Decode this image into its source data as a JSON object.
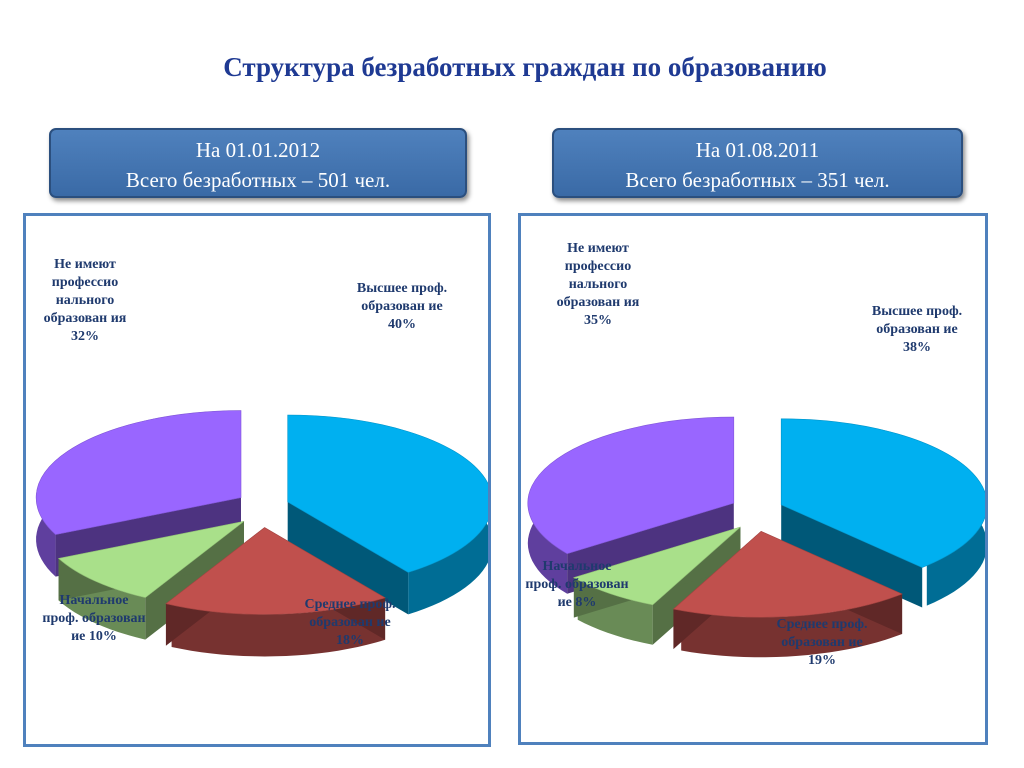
{
  "page_title": "Структура безработных граждан по образованию",
  "colors": {
    "higher": "#00b0f0",
    "secondary": "#c0504d",
    "initial": "#a9e08a",
    "none": "#9966ff",
    "header_bg": "#4f81bd",
    "title": "#1f3a93"
  },
  "chart_data": [
    {
      "type": "pie",
      "header": {
        "date": "На 01.01.2012",
        "total": "Всего безработных – 501 чел."
      },
      "slices": [
        {
          "key": "higher",
          "label": "Высшее проф. образован ие 40%",
          "value": 40
        },
        {
          "key": "secondary",
          "label": "Среднее проф. образован ие 18%",
          "value": 18
        },
        {
          "key": "initial",
          "label": "Начальное проф. образован ие 10%",
          "value": 10
        },
        {
          "key": "none",
          "label": "Не имеют профессио нального образован ия 32%",
          "value": 32
        }
      ]
    },
    {
      "type": "pie",
      "header": {
        "date": "На 01.08.2011",
        "total": "Всего безработных – 351 чел."
      },
      "slices": [
        {
          "key": "higher",
          "label": "Высшее проф. образован ие 38%",
          "value": 38
        },
        {
          "key": "secondary",
          "label": "Среднее проф. образован ие 19%",
          "value": 19
        },
        {
          "key": "initial",
          "label": "Начальное проф. образован ие 8%",
          "value": 8
        },
        {
          "key": "none",
          "label": "Не имеют профессио нального образован ия 35%",
          "value": 35
        }
      ]
    }
  ]
}
